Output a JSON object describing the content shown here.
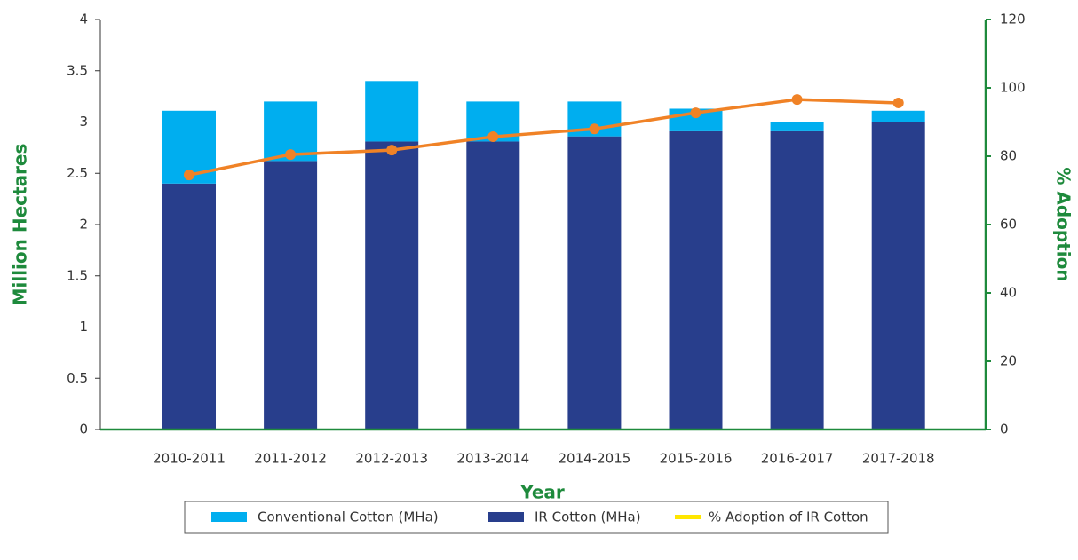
{
  "chart_data": {
    "type": "bar",
    "stacked": true,
    "x_label": "Year",
    "y_label": "Million Hectares",
    "y2_label": "% Adoption",
    "categories": [
      "2010-2011",
      "2011-2012",
      "2012-2013",
      "2013-2014",
      "2014-2015",
      "2015-2016",
      "2016-2017",
      "2017-2018"
    ],
    "series": [
      {
        "name": "Conventional Cotton (MHa)",
        "type": "bar",
        "stack_order": 1,
        "color": "#00aeef",
        "values": [
          0.71,
          0.58,
          0.59,
          0.39,
          0.34,
          0.22,
          0.09,
          0.11
        ]
      },
      {
        "name": "IR Cotton (MHa)",
        "type": "bar",
        "stack_order": 0,
        "color": "#283e8c",
        "values": [
          2.4,
          2.62,
          2.81,
          2.81,
          2.86,
          2.91,
          2.91,
          3.0
        ]
      },
      {
        "name": "% Adoption of IR Cotton",
        "type": "line",
        "axis": "y2",
        "color": "#f08226",
        "legend_color": "#ffe600",
        "values": [
          74.5,
          80.5,
          81.8,
          85.7,
          88,
          92.7,
          96.6,
          95.6
        ]
      }
    ],
    "ylim": [
      0,
      4
    ],
    "yticks": [
      0,
      0.5,
      1,
      1.5,
      2,
      2.5,
      3,
      3.5,
      4
    ],
    "y2lim": [
      0,
      120
    ],
    "y2ticks": [
      0,
      20,
      40,
      60,
      80,
      100,
      120
    ],
    "legend": "bottom"
  }
}
